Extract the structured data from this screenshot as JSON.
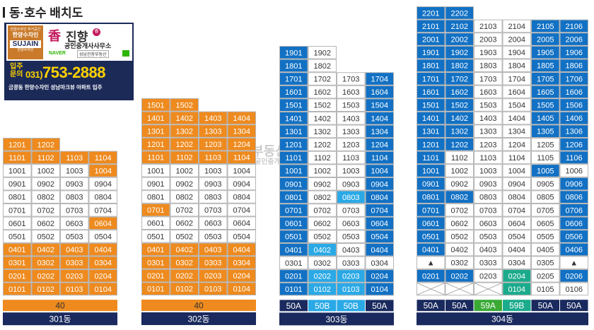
{
  "page_title": "동·호수 배치도",
  "ad": {
    "left_small": "한양수자인 주거공간",
    "left_name": "한양수자인",
    "left_logo": "SUJAIN",
    "left_logo_sub": "한양수자인",
    "right_logo": "香",
    "right_name": "진향",
    "right_badge": "香",
    "right_office": "공인중개사사무소",
    "naver": "NAVER",
    "naver_label": "성남진향부동산",
    "inquiry": "입주\n문의",
    "phone_area": "031)",
    "phone": "753-2888",
    "bottom": "금광동 한양수자인 성남마크뷰 아파트 입주"
  },
  "watermark": "진향 부동산",
  "watermark_sub": "공인중개사사무소",
  "colors": {
    "orange": "#ee8a1e",
    "blue": "#1271c4",
    "light_blue": "#2aa9e6",
    "teal": "#1bab8c",
    "white": "#ffffff",
    "footer_orange": "#ee8a1e",
    "footer_navy": "#1a2a5e",
    "footer_59": "#3aaa35",
    "grid": "#b7b7b7"
  },
  "buildings": [
    {
      "name": "301동",
      "cols": 4,
      "type_labels": [
        "40"
      ],
      "type_colors": [
        "orange"
      ],
      "rows": [
        [
          "1201",
          "1202",
          "",
          ""
        ],
        [
          "1101",
          "1102",
          "1103",
          "1104"
        ],
        [
          "1001",
          "1002",
          "1003",
          "1004"
        ],
        [
          "0901",
          "0902",
          "0903",
          "0904"
        ],
        [
          "0801",
          "0802",
          "0803",
          "0804"
        ],
        [
          "0701",
          "0702",
          "0703",
          "0704"
        ],
        [
          "0601",
          "0602",
          "0603",
          "0604"
        ],
        [
          "0501",
          "0502",
          "0503",
          "0504"
        ],
        [
          "0401",
          "0402",
          "0403",
          "0404"
        ],
        [
          "0301",
          "0302",
          "0303",
          "0304"
        ],
        [
          "0201",
          "0202",
          "0203",
          "0204"
        ],
        [
          "0101",
          "0102",
          "0103",
          "0104"
        ]
      ],
      "highlight": [
        [
          "o",
          "o",
          "-",
          "-"
        ],
        [
          "o",
          "o",
          "o",
          "o"
        ],
        [
          "w",
          "w",
          "w",
          "o"
        ],
        [
          "w",
          "w",
          "w",
          "w"
        ],
        [
          "w",
          "w",
          "w",
          "w"
        ],
        [
          "w",
          "w",
          "w",
          "w"
        ],
        [
          "w",
          "w",
          "w",
          "o"
        ],
        [
          "w",
          "w",
          "w",
          "w"
        ],
        [
          "o",
          "o",
          "o",
          "o"
        ],
        [
          "o",
          "o",
          "o",
          "o"
        ],
        [
          "o",
          "o",
          "o",
          "o"
        ],
        [
          "o",
          "o",
          "o",
          "o"
        ]
      ]
    },
    {
      "name": "302동",
      "cols": 4,
      "type_labels": [
        "40"
      ],
      "type_colors": [
        "orange"
      ],
      "rows": [
        [
          "1501",
          "1502",
          "",
          ""
        ],
        [
          "1401",
          "1402",
          "1403",
          "1404"
        ],
        [
          "1301",
          "1302",
          "1303",
          "1304"
        ],
        [
          "1201",
          "1202",
          "1203",
          "1204"
        ],
        [
          "1101",
          "1102",
          "1103",
          "1104"
        ],
        [
          "1001",
          "1002",
          "1003",
          "1004"
        ],
        [
          "0901",
          "0902",
          "0903",
          "0904"
        ],
        [
          "0801",
          "0802",
          "0803",
          "0804"
        ],
        [
          "0701",
          "0702",
          "0703",
          "0704"
        ],
        [
          "0601",
          "0602",
          "0603",
          "0604"
        ],
        [
          "0501",
          "0502",
          "0503",
          "0504"
        ],
        [
          "0401",
          "0402",
          "0403",
          "0404"
        ],
        [
          "0301",
          "0302",
          "0303",
          "0304"
        ],
        [
          "0201",
          "0202",
          "0203",
          "0204"
        ],
        [
          "0101",
          "0102",
          "0103",
          "0104"
        ]
      ],
      "highlight": [
        [
          "o",
          "o",
          "-",
          "-"
        ],
        [
          "o",
          "o",
          "o",
          "o"
        ],
        [
          "o",
          "o",
          "o",
          "o"
        ],
        [
          "o",
          "o",
          "o",
          "o"
        ],
        [
          "o",
          "o",
          "o",
          "o"
        ],
        [
          "w",
          "w",
          "w",
          "w"
        ],
        [
          "w",
          "w",
          "w",
          "w"
        ],
        [
          "w",
          "w",
          "w",
          "w"
        ],
        [
          "o",
          "w",
          "w",
          "w"
        ],
        [
          "w",
          "w",
          "w",
          "w"
        ],
        [
          "w",
          "w",
          "w",
          "w"
        ],
        [
          "o",
          "o",
          "o",
          "o"
        ],
        [
          "o",
          "o",
          "o",
          "o"
        ],
        [
          "o",
          "o",
          "o",
          "o"
        ],
        [
          "o",
          "o",
          "o",
          "o"
        ]
      ]
    },
    {
      "name": "303동",
      "cols": 4,
      "type_labels": [
        "50A",
        "50B",
        "50B",
        "50A"
      ],
      "type_colors": [
        "navy",
        "light_blue",
        "light_blue",
        "navy"
      ],
      "rows": [
        [
          "1901",
          "1902",
          "",
          ""
        ],
        [
          "1801",
          "1802",
          "",
          ""
        ],
        [
          "1701",
          "1702",
          "1703",
          "1704"
        ],
        [
          "1601",
          "1602",
          "1603",
          "1604"
        ],
        [
          "1501",
          "1502",
          "1503",
          "1504"
        ],
        [
          "1401",
          "1402",
          "1403",
          "1404"
        ],
        [
          "1301",
          "1302",
          "1303",
          "1304"
        ],
        [
          "1201",
          "1202",
          "1203",
          "1204"
        ],
        [
          "1101",
          "1102",
          "1103",
          "1104"
        ],
        [
          "1001",
          "1002",
          "1003",
          "1004"
        ],
        [
          "0901",
          "0902",
          "0903",
          "0904"
        ],
        [
          "0801",
          "0802",
          "0803",
          "0804"
        ],
        [
          "0701",
          "0702",
          "0703",
          "0704"
        ],
        [
          "0601",
          "0602",
          "0603",
          "0604"
        ],
        [
          "0501",
          "0502",
          "0503",
          "0504"
        ],
        [
          "0401",
          "0402",
          "0403",
          "0404"
        ],
        [
          "0301",
          "0302",
          "0303",
          "0304"
        ],
        [
          "0201",
          "0202",
          "0203",
          "0204"
        ],
        [
          "0101",
          "0102",
          "0103",
          "0104"
        ]
      ],
      "highlight": [
        [
          "b",
          "w",
          "-",
          "-"
        ],
        [
          "b",
          "w",
          "-",
          "-"
        ],
        [
          "b",
          "w",
          "w",
          "b"
        ],
        [
          "b",
          "w",
          "w",
          "b"
        ],
        [
          "b",
          "w",
          "w",
          "b"
        ],
        [
          "b",
          "w",
          "w",
          "b"
        ],
        [
          "b",
          "w",
          "w",
          "b"
        ],
        [
          "b",
          "w",
          "w",
          "b"
        ],
        [
          "b",
          "w",
          "w",
          "b"
        ],
        [
          "b",
          "w",
          "w",
          "b"
        ],
        [
          "b",
          "w",
          "w",
          "b"
        ],
        [
          "b",
          "w",
          "l",
          "b"
        ],
        [
          "b",
          "w",
          "w",
          "b"
        ],
        [
          "b",
          "w",
          "w",
          "b"
        ],
        [
          "b",
          "w",
          "w",
          "b"
        ],
        [
          "b",
          "l",
          "w",
          "b"
        ],
        [
          "w",
          "w",
          "w",
          "w"
        ],
        [
          "b",
          "l",
          "l",
          "b"
        ],
        [
          "b",
          "l",
          "l",
          "b"
        ]
      ]
    },
    {
      "name": "304동",
      "cols": 6,
      "type_labels": [
        "50A",
        "50A",
        "59A",
        "59B",
        "50A",
        "50A"
      ],
      "type_colors": [
        "navy",
        "navy",
        "green",
        "teal",
        "navy",
        "navy"
      ],
      "rows": [
        [
          "2201",
          "2202",
          "",
          "",
          "",
          ""
        ],
        [
          "2101",
          "2102",
          "2103",
          "2104",
          "2105",
          "2106"
        ],
        [
          "2001",
          "2002",
          "2003",
          "2004",
          "2005",
          "2006"
        ],
        [
          "1901",
          "1902",
          "1903",
          "1904",
          "1905",
          "1906"
        ],
        [
          "1801",
          "1802",
          "1803",
          "1804",
          "1805",
          "1806"
        ],
        [
          "1701",
          "1702",
          "1703",
          "1704",
          "1705",
          "1706"
        ],
        [
          "1601",
          "1602",
          "1603",
          "1604",
          "1605",
          "1606"
        ],
        [
          "1501",
          "1502",
          "1503",
          "1504",
          "1505",
          "1506"
        ],
        [
          "1401",
          "1402",
          "1403",
          "1404",
          "1405",
          "1406"
        ],
        [
          "1301",
          "1302",
          "1303",
          "1304",
          "1305",
          "1306"
        ],
        [
          "1201",
          "1202",
          "1203",
          "1204",
          "1205",
          "1206"
        ],
        [
          "1101",
          "1102",
          "1103",
          "1104",
          "1105",
          "1106"
        ],
        [
          "1001",
          "1002",
          "1003",
          "1004",
          "1005",
          "1006"
        ],
        [
          "0901",
          "0902",
          "0903",
          "0904",
          "0905",
          "0906"
        ],
        [
          "0801",
          "0802",
          "0803",
          "0804",
          "0805",
          "0806"
        ],
        [
          "0701",
          "0702",
          "0703",
          "0704",
          "0705",
          "0706"
        ],
        [
          "0601",
          "0602",
          "0603",
          "0604",
          "0605",
          "0606"
        ],
        [
          "0501",
          "0502",
          "0503",
          "0504",
          "0505",
          "0506"
        ],
        [
          "0401",
          "0402",
          "0403",
          "0404",
          "0405",
          "0406"
        ],
        [
          "▲",
          "0302",
          "0303",
          "0304",
          "0305",
          "▲"
        ],
        [
          "0201",
          "0202",
          "0203",
          "0204",
          "0205",
          "0206"
        ],
        [
          "",
          "",
          "",
          "0104",
          "0105",
          "0106"
        ]
      ],
      "highlight": [
        [
          "b",
          "b",
          "-",
          "-",
          "-",
          "-"
        ],
        [
          "b",
          "b",
          "w",
          "w",
          "b",
          "b"
        ],
        [
          "b",
          "b",
          "w",
          "w",
          "b",
          "b"
        ],
        [
          "b",
          "b",
          "w",
          "w",
          "b",
          "b"
        ],
        [
          "b",
          "b",
          "w",
          "w",
          "b",
          "b"
        ],
        [
          "b",
          "b",
          "w",
          "w",
          "b",
          "b"
        ],
        [
          "b",
          "b",
          "w",
          "w",
          "b",
          "b"
        ],
        [
          "b",
          "b",
          "w",
          "w",
          "b",
          "b"
        ],
        [
          "b",
          "b",
          "w",
          "w",
          "b",
          "b"
        ],
        [
          "b",
          "b",
          "w",
          "w",
          "b",
          "b"
        ],
        [
          "b",
          "b",
          "w",
          "w",
          "w",
          "b"
        ],
        [
          "b",
          "w",
          "w",
          "w",
          "w",
          "b"
        ],
        [
          "b",
          "w",
          "w",
          "w",
          "b",
          "w"
        ],
        [
          "b",
          "w",
          "w",
          "w",
          "w",
          "b"
        ],
        [
          "b",
          "b",
          "w",
          "w",
          "w",
          "b"
        ],
        [
          "b",
          "w",
          "w",
          "w",
          "w",
          "b"
        ],
        [
          "b",
          "w",
          "w",
          "w",
          "w",
          "b"
        ],
        [
          "b",
          "w",
          "w",
          "w",
          "w",
          "b"
        ],
        [
          "b",
          "w",
          "w",
          "w",
          "w",
          "b"
        ],
        [
          "w",
          "w",
          "w",
          "w",
          "w",
          "w"
        ],
        [
          "b",
          "b",
          "w",
          "t",
          "w",
          "b"
        ],
        [
          "x",
          "x",
          "x",
          "t",
          "w",
          "w"
        ]
      ]
    }
  ]
}
